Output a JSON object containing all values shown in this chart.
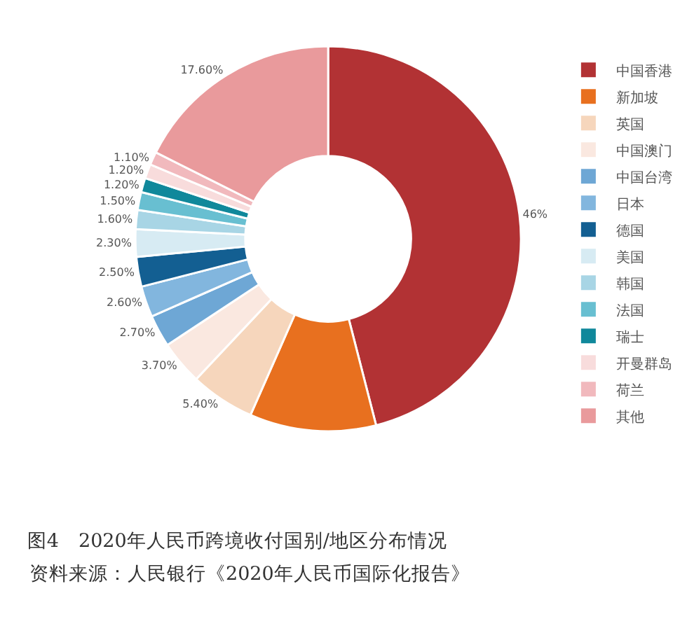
{
  "chart_data": {
    "type": "donut",
    "title": "图4　2020年人民币跨境收付国别/地区分布情况",
    "annotations": [
      "资料来源：人民银行《2020年人民币国际化报告》"
    ],
    "categories": [
      "中国香港",
      "新加坡",
      "英国",
      "中国澳门",
      "中国台湾",
      "日本",
      "德国",
      "美国",
      "韩国",
      "法国",
      "瑞士",
      "开曼群岛",
      "荷兰",
      "其他"
    ],
    "values": [
      46,
      10.6,
      5.4,
      3.7,
      2.7,
      2.6,
      2.5,
      2.3,
      1.6,
      1.5,
      1.2,
      1.2,
      1.1,
      17.6
    ],
    "colors": [
      "#b23234",
      "#e8701f",
      "#f6d6bc",
      "#fae8e0",
      "#6ea7d5",
      "#82b6de",
      "#135f92",
      "#d7ebf3",
      "#a8d5e5",
      "#68bfd1",
      "#10889b",
      "#f8dcdc",
      "#f1b9bd",
      "#e99a9c"
    ],
    "value_labels": [
      "46%",
      null,
      "5.40%",
      "3.70%",
      "2.70%",
      "2.60%",
      "2.50%",
      "2.30%",
      "1.60%",
      "1.50%",
      "1.20%",
      "1.20%",
      "1.10%",
      "17.60%"
    ],
    "legend": "right"
  }
}
